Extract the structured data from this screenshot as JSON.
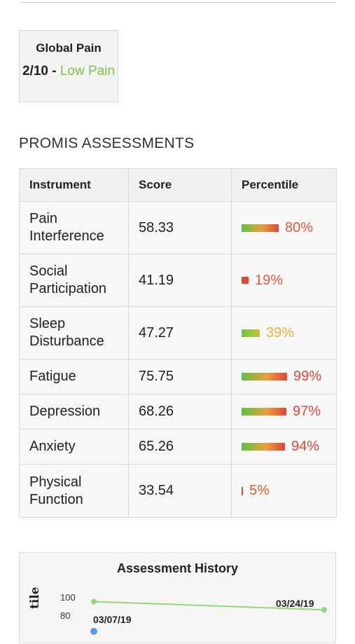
{
  "global_pain": {
    "title": "Global Pain",
    "score": "2/10",
    "separator": " - ",
    "level": "Low Pain",
    "level_color": "#7cc242"
  },
  "promis": {
    "section_title": "PROMIS ASSESSMENTS",
    "headers": [
      "Instrument",
      "Score",
      "Percentile"
    ],
    "rows": [
      {
        "instrument": "Pain Interference",
        "score": "58.33",
        "percentile": "80%",
        "percentile_value": 80,
        "text_color": "#e05a3a"
      },
      {
        "instrument": "Social Participation",
        "score": "41.19",
        "percentile": "19%",
        "percentile_value": 19,
        "text_color": "#e05a3a"
      },
      {
        "instrument": "Sleep Disturbance",
        "score": "47.27",
        "percentile": "39%",
        "percentile_value": 39,
        "text_color": "#e6b43a"
      },
      {
        "instrument": "Fatigue",
        "score": "75.75",
        "percentile": "99%",
        "percentile_value": 99,
        "text_color": "#e0443a"
      },
      {
        "instrument": "Depression",
        "score": "68.26",
        "percentile": "97%",
        "percentile_value": 97,
        "text_color": "#e0443a"
      },
      {
        "instrument": "Anxiety",
        "score": "65.26",
        "percentile": "94%",
        "percentile_value": 94,
        "text_color": "#e0443a"
      },
      {
        "instrument": "Physical Function",
        "score": "33.54",
        "percentile": "5%",
        "percentile_value": 5,
        "text_color": "#e05a3a"
      }
    ]
  },
  "history": {
    "title": "Assessment History",
    "y_title_visible": "tile",
    "y_ticks": [
      "100",
      "80"
    ],
    "dates": [
      "03/07/19",
      "03/24/19"
    ],
    "green_line_values": [
      95,
      86
    ],
    "green_color": "#8fd97a",
    "blue_color": "#5b9bd5"
  }
}
